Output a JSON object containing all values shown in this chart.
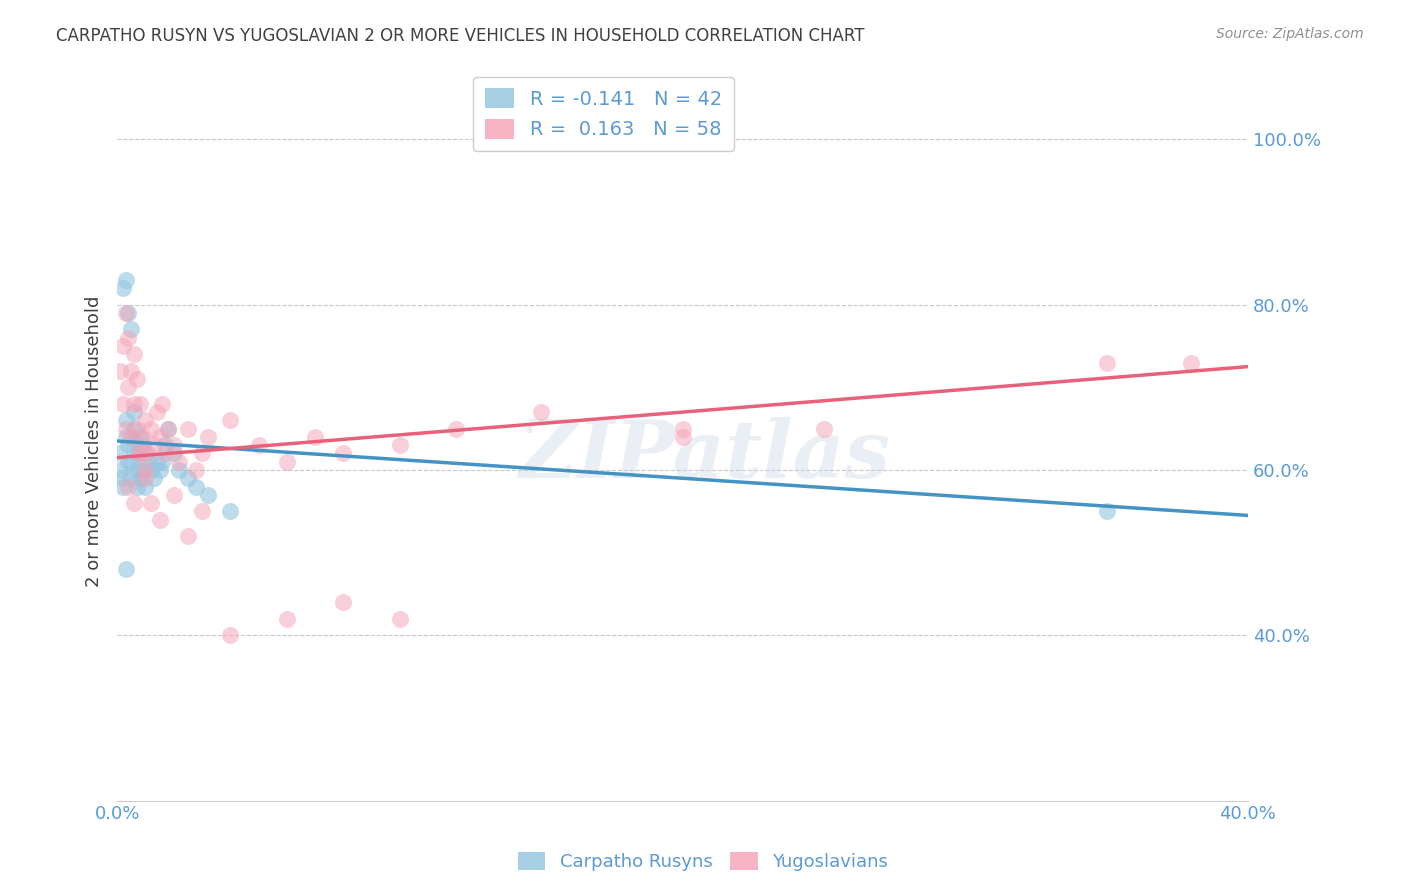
{
  "title": "CARPATHO RUSYN VS YUGOSLAVIAN 2 OR MORE VEHICLES IN HOUSEHOLD CORRELATION CHART",
  "source": "Source: ZipAtlas.com",
  "ylabel": "2 or more Vehicles in Household",
  "xlabel_blue": "Carpatho Rusyns",
  "xlabel_pink": "Yugoslavians",
  "xmin": 0.0,
  "xmax": 0.4,
  "ymin": 0.2,
  "ymax": 1.07,
  "yticks": [
    0.4,
    0.6,
    0.8,
    1.0
  ],
  "ytick_labels": [
    "40.0%",
    "60.0%",
    "80.0%",
    "100.0%"
  ],
  "xticks": [
    0.0,
    0.4
  ],
  "xtick_labels": [
    "0.0%",
    "40.0%"
  ],
  "blue_R": -0.141,
  "blue_N": 42,
  "pink_R": 0.163,
  "pink_N": 58,
  "blue_color": "#92c5de",
  "pink_color": "#f4a0b5",
  "blue_line_color": "#4393c3",
  "pink_line_color": "#e8607a",
  "axis_color": "#5b9bd5",
  "grid_color": "#c8c8c8",
  "title_color": "#404040",
  "source_color": "#909090",
  "watermark": "ZIPatlas",
  "blue_x": [
    0.001,
    0.001,
    0.002,
    0.002,
    0.002,
    0.003,
    0.003,
    0.003,
    0.004,
    0.004,
    0.004,
    0.005,
    0.005,
    0.005,
    0.006,
    0.006,
    0.006,
    0.007,
    0.007,
    0.007,
    0.008,
    0.008,
    0.009,
    0.009,
    0.01,
    0.01,
    0.011,
    0.012,
    0.013,
    0.014,
    0.015,
    0.016,
    0.017,
    0.018,
    0.02,
    0.022,
    0.025,
    0.028,
    0.032,
    0.04,
    0.35,
    0.003
  ],
  "blue_y": [
    0.6,
    0.62,
    0.58,
    0.59,
    0.82,
    0.64,
    0.66,
    0.83,
    0.61,
    0.63,
    0.79,
    0.59,
    0.61,
    0.77,
    0.63,
    0.65,
    0.67,
    0.58,
    0.6,
    0.62,
    0.59,
    0.64,
    0.6,
    0.63,
    0.58,
    0.62,
    0.61,
    0.6,
    0.59,
    0.61,
    0.6,
    0.61,
    0.63,
    0.65,
    0.62,
    0.6,
    0.59,
    0.58,
    0.57,
    0.55,
    0.55,
    0.48
  ],
  "pink_x": [
    0.001,
    0.002,
    0.002,
    0.003,
    0.003,
    0.004,
    0.004,
    0.005,
    0.005,
    0.006,
    0.006,
    0.007,
    0.007,
    0.008,
    0.008,
    0.009,
    0.01,
    0.01,
    0.011,
    0.012,
    0.013,
    0.014,
    0.015,
    0.016,
    0.017,
    0.018,
    0.02,
    0.022,
    0.025,
    0.028,
    0.03,
    0.032,
    0.04,
    0.05,
    0.06,
    0.07,
    0.08,
    0.1,
    0.12,
    0.15,
    0.2,
    0.25,
    0.004,
    0.006,
    0.008,
    0.01,
    0.012,
    0.015,
    0.02,
    0.025,
    0.03,
    0.04,
    0.06,
    0.08,
    0.1,
    0.2,
    0.35,
    0.38
  ],
  "pink_y": [
    0.72,
    0.68,
    0.75,
    0.65,
    0.79,
    0.7,
    0.76,
    0.64,
    0.72,
    0.68,
    0.74,
    0.65,
    0.71,
    0.62,
    0.68,
    0.64,
    0.6,
    0.66,
    0.62,
    0.65,
    0.63,
    0.67,
    0.64,
    0.68,
    0.62,
    0.65,
    0.63,
    0.61,
    0.65,
    0.6,
    0.62,
    0.64,
    0.66,
    0.63,
    0.61,
    0.64,
    0.62,
    0.63,
    0.65,
    0.67,
    0.64,
    0.65,
    0.58,
    0.56,
    0.62,
    0.59,
    0.56,
    0.54,
    0.57,
    0.52,
    0.55,
    0.4,
    0.42,
    0.44,
    0.42,
    0.65,
    0.73,
    0.73
  ]
}
